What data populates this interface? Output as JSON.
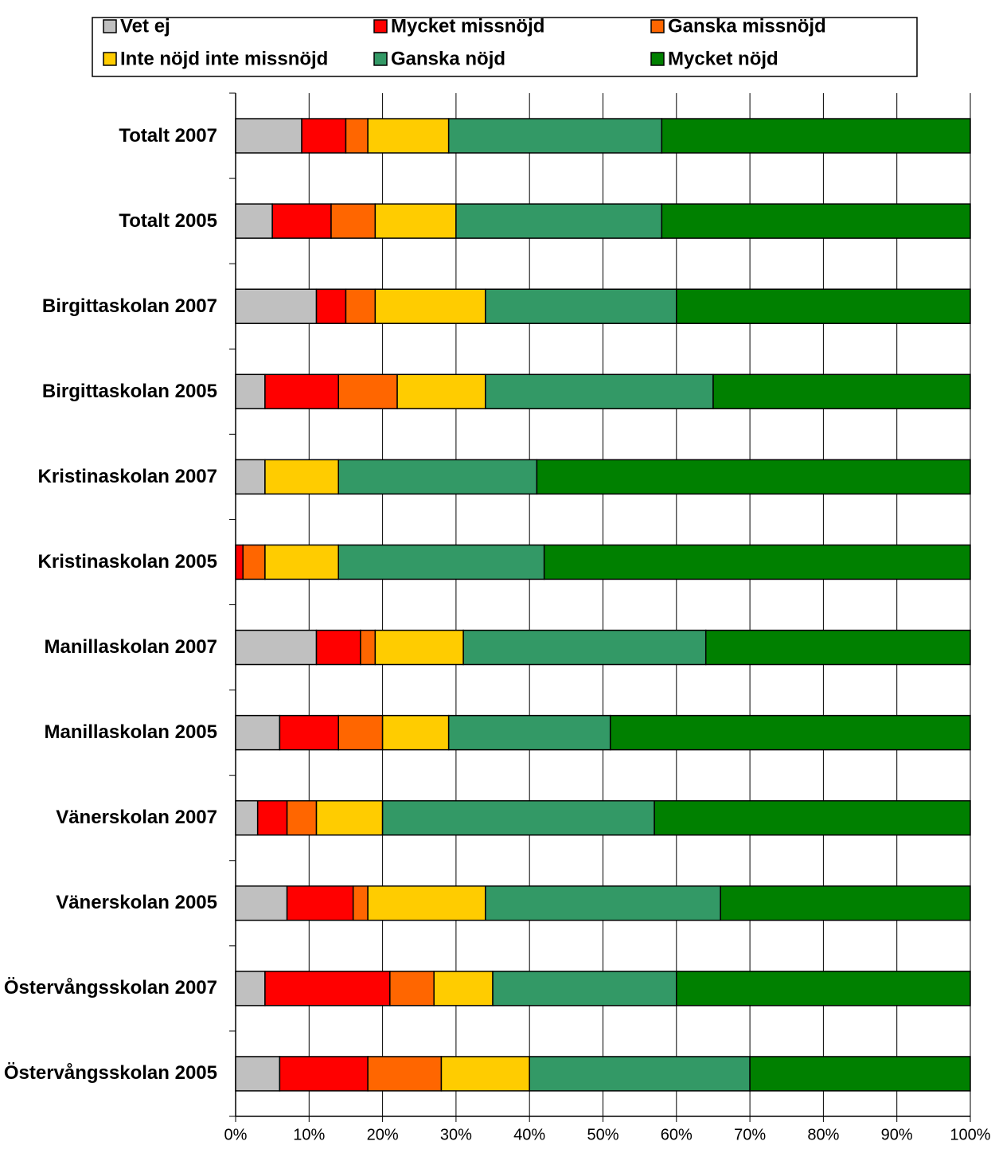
{
  "chart_data": {
    "type": "stacked-barh",
    "categories": [
      "Totalt 2007",
      "Totalt 2005",
      "Birgittaskolan 2007",
      "Birgittaskolan 2005",
      "Kristinaskolan 2007",
      "Kristinaskolan 2005",
      "Manillaskolan 2007",
      "Manillaskolan 2005",
      "Vänerskolan 2007",
      "Vänerskolan 2005",
      "Östervångsskolan 2007",
      "Östervångsskolan 2005"
    ],
    "series": [
      {
        "name": "Vet ej",
        "color": "#c0c0c0",
        "values": [
          9,
          5,
          11,
          4,
          4,
          0,
          11,
          6,
          3,
          7,
          4,
          6
        ]
      },
      {
        "name": "Mycket missnöjd",
        "color": "#ff0000",
        "values": [
          6,
          8,
          4,
          10,
          0,
          1,
          6,
          8,
          4,
          9,
          17,
          12
        ]
      },
      {
        "name": "Ganska missnöjd",
        "color": "#ff6600",
        "values": [
          3,
          6,
          4,
          8,
          0,
          3,
          2,
          6,
          4,
          2,
          6,
          10
        ]
      },
      {
        "name": "Inte nöjd inte missnöjd",
        "color": "#ffcc00",
        "values": [
          11,
          11,
          15,
          12,
          10,
          10,
          12,
          9,
          9,
          16,
          8,
          12
        ]
      },
      {
        "name": "Ganska nöjd",
        "color": "#339966",
        "values": [
          29,
          28,
          26,
          31,
          27,
          28,
          33,
          22,
          37,
          32,
          25,
          30
        ]
      },
      {
        "name": "Mycket nöjd",
        "color": "#008000",
        "values": [
          42,
          42,
          40,
          35,
          59,
          58,
          36,
          49,
          43,
          34,
          40,
          30
        ]
      }
    ],
    "xlim": [
      0,
      100
    ],
    "xticks": [
      {
        "value": 0,
        "label": "0%"
      },
      {
        "value": 10,
        "label": "10%"
      },
      {
        "value": 20,
        "label": "20%"
      },
      {
        "value": 30,
        "label": "30%"
      },
      {
        "value": 40,
        "label": "40%"
      },
      {
        "value": 50,
        "label": "50%"
      },
      {
        "value": 60,
        "label": "60%"
      },
      {
        "value": 70,
        "label": "70%"
      },
      {
        "value": 80,
        "label": "80%"
      },
      {
        "value": 90,
        "label": "90%"
      },
      {
        "value": 100,
        "label": "100%"
      }
    ],
    "grid": true
  }
}
